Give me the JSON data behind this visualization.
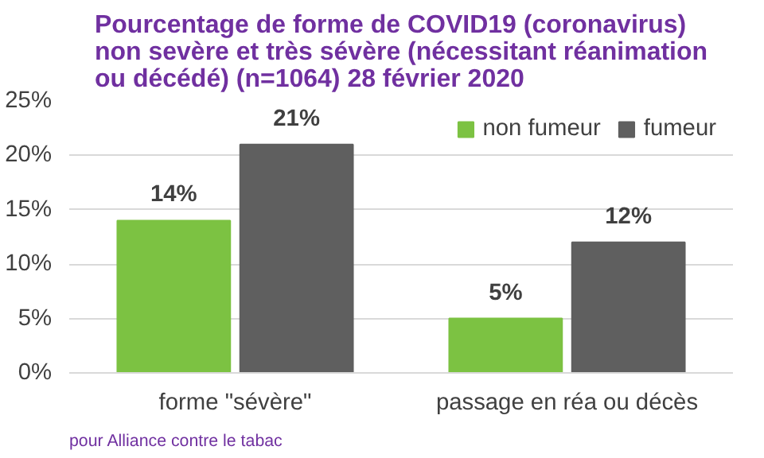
{
  "chart_data": {
    "type": "bar",
    "title": "Pourcentage de forme de COVID19 (coronavirus)\nnon sevère et très sévère (nécessitant réanimation\nou décédé) (n=1064) 28 février 2020",
    "categories": [
      "forme \"sévère\"",
      "passage en réa ou décès"
    ],
    "series": [
      {
        "name": "non fumeur",
        "color": "#7cc242",
        "values": [
          14,
          5
        ],
        "value_labels": [
          "14%",
          "5%"
        ]
      },
      {
        "name": "fumeur",
        "color": "#5f5f5f",
        "values": [
          21,
          12
        ],
        "value_labels": [
          "21%",
          "12%"
        ]
      }
    ],
    "ylim": [
      0,
      25
    ],
    "yticks": [
      {
        "value": 0,
        "label": "0%"
      },
      {
        "value": 5,
        "label": "5%"
      },
      {
        "value": 10,
        "label": "10%"
      },
      {
        "value": 15,
        "label": "15%"
      },
      {
        "value": 20,
        "label": "20%"
      },
      {
        "value": 25,
        "label": "25%"
      }
    ],
    "grid": "y",
    "legend": "top right",
    "annotations": [
      "pour Alliance contre le tabac"
    ]
  }
}
